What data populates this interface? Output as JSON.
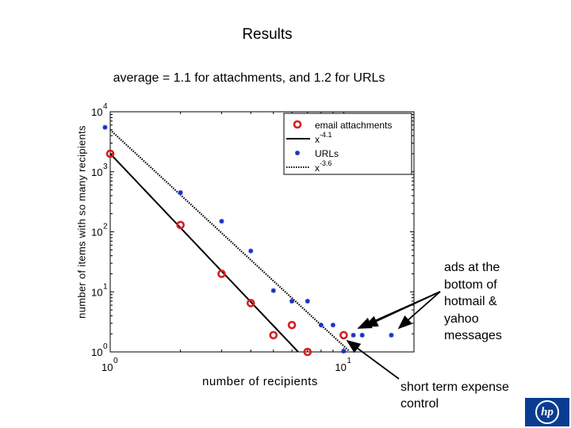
{
  "slide": {
    "title": "Results",
    "annotation_ads": "ads at the bottom of hotmail & yahoo messages",
    "annotation_expense": "short term expense control",
    "logo_text": "hp"
  },
  "chart_data": {
    "type": "scatter",
    "title": "average = 1.1 for attachments, and 1.2 for URLs",
    "xlabel": "number of recipients",
    "ylabel": "number of items with so many recipients",
    "xscale": "log",
    "yscale": "log",
    "xlim": [
      1,
      20
    ],
    "ylim": [
      1,
      10000
    ],
    "x_ticks": [
      {
        "value": 1,
        "base": "10",
        "exp": "0"
      },
      {
        "value": 10,
        "base": "10",
        "exp": "1"
      }
    ],
    "y_ticks": [
      {
        "value": 1,
        "base": "10",
        "exp": "0"
      },
      {
        "value": 10,
        "base": "10",
        "exp": "1"
      },
      {
        "value": 100,
        "base": "10",
        "exp": "2"
      },
      {
        "value": 1000,
        "base": "10",
        "exp": "3"
      },
      {
        "value": 10000,
        "base": "10",
        "exp": "4"
      }
    ],
    "grid": false,
    "legend_position": "top-right",
    "series": [
      {
        "name": "email attachments",
        "kind": "points",
        "marker": "circle",
        "color": "#d42020",
        "points": [
          [
            1,
            2000
          ],
          [
            2,
            130
          ],
          [
            3,
            20
          ],
          [
            4,
            6.5
          ],
          [
            5,
            1.9
          ],
          [
            6,
            2.8
          ],
          [
            7,
            1
          ],
          [
            10,
            1.9
          ]
        ]
      },
      {
        "name": "x",
        "name_sup": "-4.1",
        "kind": "line",
        "style": "solid",
        "color": "#000000",
        "exponent": -4.1,
        "coefficient": 2000,
        "x_range": [
          1,
          6.4
        ]
      },
      {
        "name": "URLs",
        "kind": "points",
        "marker": "star",
        "color": "#1530c8",
        "points": [
          [
            0.95,
            5500
          ],
          [
            2,
            450
          ],
          [
            3,
            150
          ],
          [
            4,
            48
          ],
          [
            5,
            10.5
          ],
          [
            6,
            7
          ],
          [
            7,
            7
          ],
          [
            8,
            2.8
          ],
          [
            9,
            2.8
          ],
          [
            10,
            1.03
          ],
          [
            11,
            1.9
          ],
          [
            12,
            1.9
          ],
          [
            16,
            1.9
          ]
        ]
      },
      {
        "name": "x",
        "name_sup": "-3.6",
        "kind": "line",
        "style": "dotted",
        "color": "#000000",
        "exponent": -3.6,
        "coefficient": 5000,
        "x_range": [
          1,
          10.5
        ]
      }
    ]
  }
}
